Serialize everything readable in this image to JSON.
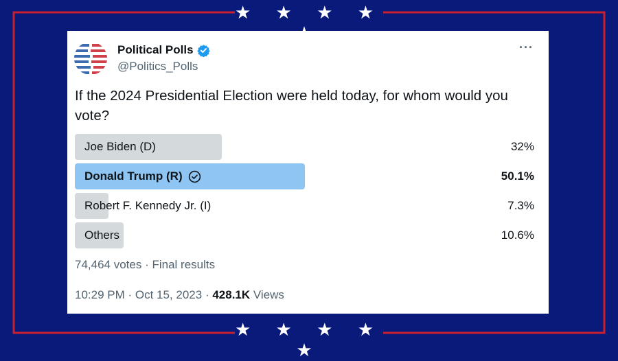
{
  "banner": {
    "stars": "★ ★ ★ ★ ★"
  },
  "tweet": {
    "display_name": "Political Polls",
    "handle": "@Politics_Polls",
    "more": "···",
    "question": "If the 2024 Presidential Election were held today, for whom would you vote?"
  },
  "poll": {
    "options": [
      {
        "label": "Joe Biden (D)",
        "pct": "32%",
        "value": 32
      },
      {
        "label": "Donald Trump (R)",
        "pct": "50.1%",
        "value": 50.1
      },
      {
        "label": "Robert F. Kennedy Jr. (I)",
        "pct": "7.3%",
        "value": 7.3
      },
      {
        "label": "Others",
        "pct": "10.6%",
        "value": 10.6
      }
    ],
    "votes": "74,464 votes",
    "separator": " · ",
    "status": "Final results"
  },
  "meta": {
    "time": "10:29 PM",
    "date": "Oct 15, 2023",
    "separator": " · ",
    "views_count": "428.1K",
    "views_label": "Views"
  },
  "colors": {
    "background": "#0a1a7a",
    "frame": "#c8202e",
    "winner_bar": "#8ec5f2",
    "bar": "#d4d9dc",
    "verified": "#1d9bf0"
  }
}
